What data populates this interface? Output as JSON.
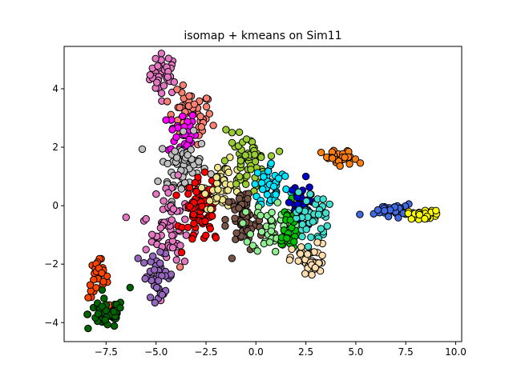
{
  "chart_data": {
    "type": "scatter",
    "title": "isomap + kmeans on Sim11",
    "xlabel": "",
    "ylabel": "",
    "xlim": [
      -9.6,
      10.3
    ],
    "ylim": [
      -4.65,
      5.45
    ],
    "xticks": [
      -7.5,
      -5.0,
      -2.5,
      0.0,
      2.5,
      5.0,
      7.5,
      10.0
    ],
    "xtick_labels": [
      "−7.5",
      "−5.0",
      "−2.5",
      "0.0",
      "2.5",
      "5.0",
      "7.5",
      "10.0"
    ],
    "yticks": [
      -4,
      -2,
      0,
      2,
      4
    ],
    "ytick_labels": [
      "−4",
      "−2",
      "0",
      "2",
      "4"
    ],
    "grid": false,
    "marker_edge_color": "#000000",
    "clusters": [
      {
        "color": "#e377c2",
        "center": [
          -4.6,
          4.5
        ],
        "spread": [
          0.35,
          0.35
        ],
        "n": 40
      },
      {
        "color": "#fa8072",
        "center": [
          -3.3,
          3.0
        ],
        "spread": [
          0.55,
          0.45
        ],
        "n": 60
      },
      {
        "color": "#ff00ff",
        "center": [
          -3.7,
          2.5
        ],
        "spread": [
          0.35,
          0.4
        ],
        "n": 35
      },
      {
        "color": "#c0c0c0",
        "center": [
          -3.6,
          1.3
        ],
        "spread": [
          0.6,
          0.55
        ],
        "n": 70
      },
      {
        "color": "#e377c2",
        "center": [
          -4.3,
          -0.7
        ],
        "spread": [
          0.45,
          0.75
        ],
        "n": 65
      },
      {
        "color": "#9467bd",
        "center": [
          -4.9,
          -2.4
        ],
        "spread": [
          0.4,
          0.35
        ],
        "n": 40
      },
      {
        "color": "#ff4500",
        "center": [
          -7.9,
          -2.5
        ],
        "spread": [
          0.25,
          0.35
        ],
        "n": 30
      },
      {
        "color": "#006400",
        "center": [
          -7.5,
          -3.7
        ],
        "spread": [
          0.45,
          0.25
        ],
        "n": 55
      },
      {
        "color": "#ff0000",
        "center": [
          -2.7,
          -0.2
        ],
        "spread": [
          0.45,
          0.55
        ],
        "n": 75
      },
      {
        "color": "#f0e68c",
        "center": [
          -1.6,
          0.7
        ],
        "spread": [
          0.5,
          0.4
        ],
        "n": 45
      },
      {
        "color": "#9acd32",
        "center": [
          -0.4,
          1.5
        ],
        "spread": [
          0.5,
          0.45
        ],
        "n": 55
      },
      {
        "color": "#795548",
        "center": [
          -0.6,
          -0.5
        ],
        "spread": [
          0.45,
          0.55
        ],
        "n": 65
      },
      {
        "color": "#00e5ff",
        "center": [
          0.8,
          0.7
        ],
        "spread": [
          0.45,
          0.4
        ],
        "n": 45
      },
      {
        "color": "#90ee90",
        "center": [
          0.8,
          -0.7
        ],
        "spread": [
          0.5,
          0.45
        ],
        "n": 45
      },
      {
        "color": "#00c000",
        "center": [
          1.6,
          -0.8
        ],
        "spread": [
          0.3,
          0.45
        ],
        "n": 30
      },
      {
        "color": "#0000cd",
        "center": [
          2.2,
          0.0
        ],
        "spread": [
          0.3,
          0.35
        ],
        "n": 35
      },
      {
        "color": "#40e0d0",
        "center": [
          2.8,
          -0.4
        ],
        "spread": [
          0.4,
          0.45
        ],
        "n": 40
      },
      {
        "color": "#ffdead",
        "center": [
          2.7,
          -1.9
        ],
        "spread": [
          0.45,
          0.3
        ],
        "n": 40
      },
      {
        "color": "#ff7f0e",
        "center": [
          4.2,
          1.6
        ],
        "spread": [
          0.45,
          0.15
        ],
        "n": 30
      },
      {
        "color": "#4169e1",
        "center": [
          6.9,
          -0.15
        ],
        "spread": [
          0.45,
          0.1
        ],
        "n": 40
      },
      {
        "color": "#ffff00",
        "center": [
          8.4,
          -0.3
        ],
        "spread": [
          0.4,
          0.08
        ],
        "n": 30
      }
    ],
    "outliers": [
      {
        "x": -1.5,
        "y": 2.6,
        "color": "#9acd32"
      },
      {
        "x": -1.2,
        "y": 2.5,
        "color": "#9acd32"
      },
      {
        "x": -1.2,
        "y": -1.8,
        "color": "#795548"
      },
      {
        "x": 2.5,
        "y": 1.0,
        "color": "#0000cd"
      },
      {
        "x": 3.5,
        "y": -0.25,
        "color": "#40e0d0"
      },
      {
        "x": 5.2,
        "y": -0.3,
        "color": "#4169e1"
      },
      {
        "x": -6.5,
        "y": -0.4,
        "color": "#e377c2"
      },
      {
        "x": -5.5,
        "y": -0.45,
        "color": "#e377c2"
      },
      {
        "x": -5.5,
        "y": -1.5,
        "color": "#e377c2"
      },
      {
        "x": -6.3,
        "y": -2.8,
        "color": "#006400"
      },
      {
        "x": -8.4,
        "y": -4.2,
        "color": "#006400"
      },
      {
        "x": -3.8,
        "y": -2.1,
        "color": "#fa8072"
      },
      {
        "x": -2.0,
        "y": -1.1,
        "color": "#ff0000"
      },
      {
        "x": -5.9,
        "y": -1.8,
        "color": "#9467bd"
      }
    ]
  }
}
